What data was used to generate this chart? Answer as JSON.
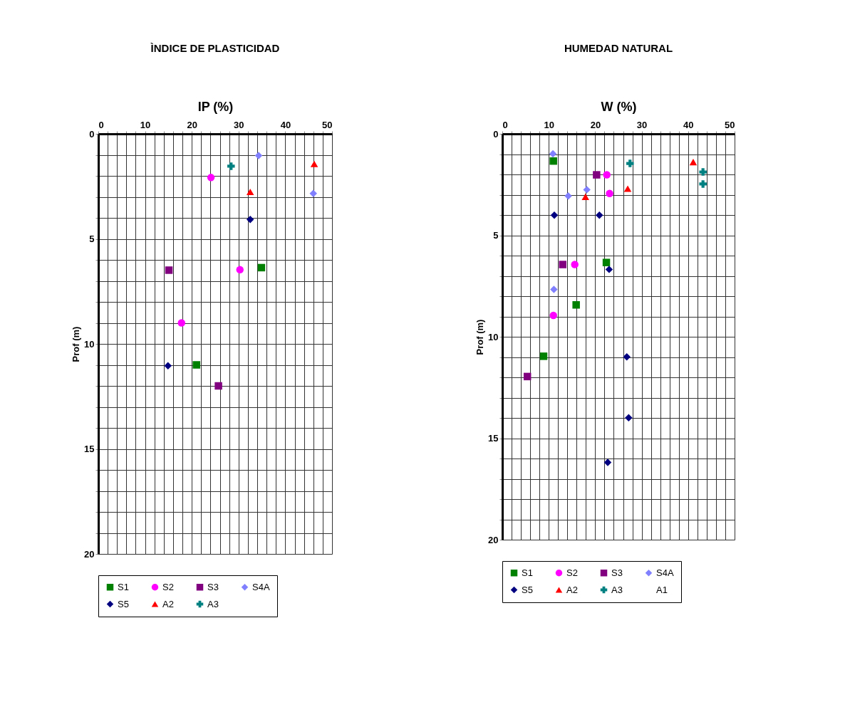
{
  "chart_data": [
    {
      "type": "scatter",
      "title": "ÌNDICE DE PLASTICIDAD",
      "xlabel": "IP (%)",
      "ylabel": "Prof (m)",
      "xlim": [
        0,
        50
      ],
      "ylim": [
        20,
        0
      ],
      "xticks": [
        0,
        {
          "value": 2,
          "label": null
        },
        {
          "value": 4,
          "label": null
        },
        {
          "value": 6,
          "label": null
        },
        {
          "value": 8,
          "label": null
        },
        10,
        {
          "value": 12,
          "label": null
        },
        {
          "value": 14,
          "label": null
        },
        {
          "value": 16,
          "label": null
        },
        {
          "value": 18,
          "label": null
        },
        20,
        {
          "value": 22,
          "label": null
        },
        {
          "value": 24,
          "label": null
        },
        {
          "value": 26,
          "label": null
        },
        {
          "value": 28,
          "label": null
        },
        30,
        {
          "value": 32,
          "label": null
        },
        {
          "value": 34,
          "label": null
        },
        {
          "value": 36,
          "label": null
        },
        {
          "value": 38,
          "label": null
        },
        40,
        {
          "value": 42,
          "label": null
        },
        {
          "value": 44,
          "label": null
        },
        {
          "value": 46,
          "label": null
        },
        {
          "value": 48,
          "label": null
        },
        50
      ],
      "yticks": [
        0,
        {
          "value": 1,
          "label": null
        },
        {
          "value": 2,
          "label": null
        },
        {
          "value": 3,
          "label": null
        },
        {
          "value": 4,
          "label": null
        },
        5,
        {
          "value": 6,
          "label": null
        },
        {
          "value": 7,
          "label": null
        },
        {
          "value": 8,
          "label": null
        },
        {
          "value": 9,
          "label": null
        },
        10,
        {
          "value": 11,
          "label": null
        },
        {
          "value": 12,
          "label": null
        },
        {
          "value": 13,
          "label": null
        },
        {
          "value": 14,
          "label": null
        },
        15,
        {
          "value": 16,
          "label": null
        },
        {
          "value": 17,
          "label": null
        },
        {
          "value": 18,
          "label": null
        },
        {
          "value": 19,
          "label": null
        },
        20
      ],
      "grid": true,
      "legend": "bottom",
      "series": [
        {
          "name": "S1",
          "color": "#008000",
          "marker": "square",
          "x": [
            34.9,
            21.0
          ],
          "values": [
            6.37,
            11.0
          ]
        },
        {
          "name": "S2",
          "color": "#ff00ff",
          "marker": "circle",
          "x": [
            24.1,
            30.3,
            17.8
          ],
          "values": [
            2.08,
            6.47,
            9.0
          ]
        },
        {
          "name": "S3",
          "color": "#800080",
          "marker": "square",
          "x": [
            15.1,
            25.7
          ],
          "values": [
            6.49,
            12.0
          ]
        },
        {
          "name": "S4A",
          "color": "#8080ff",
          "marker": "diamond",
          "x": [
            34.3,
            46.0
          ],
          "values": [
            1.03,
            2.84
          ]
        },
        {
          "name": "S5",
          "color": "#000080",
          "marker": "diamond",
          "x": [
            32.5,
            14.9
          ],
          "values": [
            4.08,
            11.04
          ]
        },
        {
          "name": "A2",
          "color": "#ff0000",
          "marker": "triangle",
          "x": [
            46.2,
            32.5
          ],
          "values": [
            1.43,
            2.76
          ]
        },
        {
          "name": "A3",
          "color": "#008080",
          "marker": "cross",
          "x": [
            28.4
          ],
          "values": [
            1.54
          ]
        }
      ]
    },
    {
      "type": "scatter",
      "title": "HUMEDAD NATURAL",
      "xlabel": "W (%)",
      "ylabel": "Prof (m)",
      "xlim": [
        0,
        50
      ],
      "ylim": [
        20,
        0
      ],
      "xticks": [
        0,
        {
          "value": 2,
          "label": null
        },
        {
          "value": 4,
          "label": null
        },
        {
          "value": 6,
          "label": null
        },
        {
          "value": 8,
          "label": null
        },
        10,
        {
          "value": 12,
          "label": null
        },
        {
          "value": 14,
          "label": null
        },
        {
          "value": 16,
          "label": null
        },
        {
          "value": 18,
          "label": null
        },
        20,
        {
          "value": 22,
          "label": null
        },
        {
          "value": 24,
          "label": null
        },
        {
          "value": 26,
          "label": null
        },
        {
          "value": 28,
          "label": null
        },
        30,
        {
          "value": 32,
          "label": null
        },
        {
          "value": 34,
          "label": null
        },
        {
          "value": 36,
          "label": null
        },
        {
          "value": 38,
          "label": null
        },
        40,
        {
          "value": 42,
          "label": null
        },
        {
          "value": 44,
          "label": null
        },
        {
          "value": 46,
          "label": null
        },
        {
          "value": 48,
          "label": null
        },
        50
      ],
      "yticks": [
        0,
        {
          "value": 1,
          "label": null
        },
        {
          "value": 2,
          "label": null
        },
        {
          "value": 3,
          "label": null
        },
        {
          "value": 4,
          "label": null
        },
        5,
        {
          "value": 6,
          "label": null
        },
        {
          "value": 7,
          "label": null
        },
        {
          "value": 8,
          "label": null
        },
        {
          "value": 9,
          "label": null
        },
        10,
        {
          "value": 11,
          "label": null
        },
        {
          "value": 12,
          "label": null
        },
        {
          "value": 13,
          "label": null
        },
        {
          "value": 14,
          "label": null
        },
        15,
        {
          "value": 16,
          "label": null
        },
        {
          "value": 17,
          "label": null
        },
        {
          "value": 18,
          "label": null
        },
        {
          "value": 19,
          "label": null
        },
        20
      ],
      "grid": true,
      "legend": "bottom",
      "series": [
        {
          "name": "S1",
          "color": "#008000",
          "marker": "square",
          "x": [
            11.0,
            22.4,
            15.9,
            8.9
          ],
          "values": [
            1.34,
            6.34,
            8.43,
            10.96
          ]
        },
        {
          "name": "S2",
          "color": "#ff00ff",
          "marker": "circle",
          "x": [
            22.5,
            23.1,
            15.6,
            11.0
          ],
          "values": [
            2.02,
            2.94,
            6.44,
            8.95
          ]
        },
        {
          "name": "S3",
          "color": "#800080",
          "marker": "square",
          "x": [
            20.3,
            13.0,
            5.4
          ],
          "values": [
            2.02,
            6.44,
            11.96
          ]
        },
        {
          "name": "S4A",
          "color": "#8080ff",
          "marker": "diamond",
          "x": [
            10.9,
            18.2,
            14.2,
            11.1
          ],
          "values": [
            0.98,
            2.75,
            3.06,
            7.67
          ]
        },
        {
          "name": "S5",
          "color": "#000080",
          "marker": "diamond",
          "x": [
            11.2,
            20.9,
            23.0,
            26.8,
            27.2,
            22.7
          ],
          "values": [
            4.01,
            4.01,
            6.68,
            10.99,
            13.99,
            16.19
          ]
        },
        {
          "name": "A2",
          "color": "#ff0000",
          "marker": "triangle",
          "x": [
            41.1,
            27.0,
            17.9
          ],
          "values": [
            1.39,
            2.7,
            3.1
          ]
        },
        {
          "name": "A3",
          "color": "#008080",
          "marker": "cross",
          "x": [
            27.5,
            43.2,
            43.2
          ],
          "values": [
            1.46,
            1.88,
            2.47
          ]
        },
        {
          "name": "A1",
          "marker": "none"
        }
      ]
    }
  ]
}
